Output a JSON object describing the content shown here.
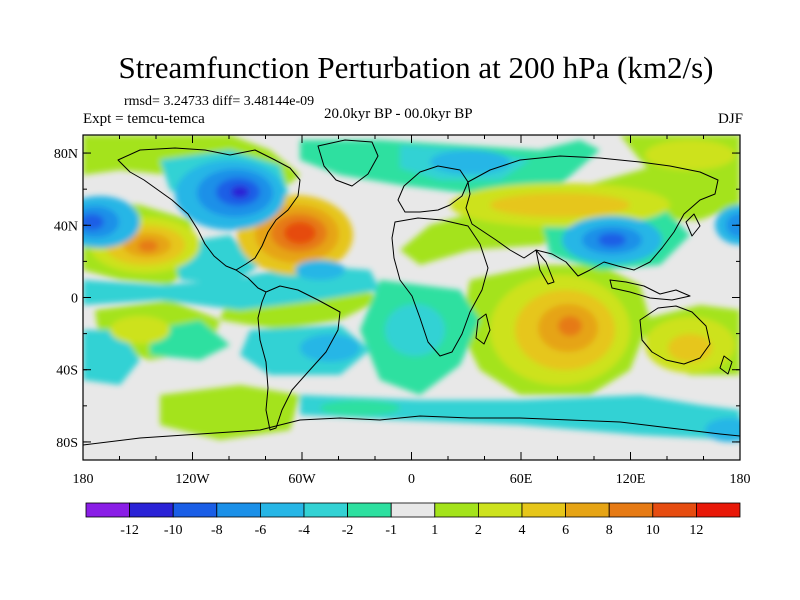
{
  "title": "Streamfunction Perturbation at 200 hPa (km2/s)",
  "stats": "rmsd= 3.24733 diff= 3.48144e-09",
  "experiment": "Expt = temcu-temca",
  "period": "20.0kyr BP - 00.0kyr BP",
  "season": "DJF",
  "axes": {
    "lon_ticks": [
      "180",
      "120W",
      "60W",
      "0",
      "60E",
      "120E",
      "180"
    ],
    "lat_ticks": [
      "80N",
      "40N",
      "0",
      "40S",
      "80S"
    ]
  },
  "colorbar": {
    "colors": [
      "#8a1ee6",
      "#2a22d6",
      "#1a5ee6",
      "#1b90e8",
      "#27b6e6",
      "#33d2d4",
      "#2de0a0",
      "#e8e8e8",
      "#a4e31b",
      "#cde21e",
      "#e6c61a",
      "#e6a415",
      "#e67a14",
      "#e64c10",
      "#e81808"
    ],
    "labels": [
      "-12",
      "-10",
      "-8",
      "-6",
      "-4",
      "-2",
      "-1",
      "1",
      "2",
      "4",
      "6",
      "8",
      "10",
      "12"
    ]
  },
  "chart_data": {
    "type": "heatmap",
    "variable": "200 hPa streamfunction perturbation",
    "units": "km2/s",
    "xlim": [
      -180,
      180
    ],
    "ylim": [
      -90,
      90
    ],
    "levels": [
      -12,
      -10,
      -8,
      -6,
      -4,
      -2,
      -1,
      1,
      2,
      4,
      6,
      8,
      10,
      12
    ],
    "features": [
      {
        "type": "low",
        "lon": -93,
        "lat": 57,
        "value": -10
      },
      {
        "type": "high",
        "lon": -60,
        "lat": 35,
        "value": 11
      },
      {
        "type": "high",
        "lon": -142,
        "lat": 26,
        "value": 7
      },
      {
        "type": "low",
        "lon": -172,
        "lat": 40,
        "value": -8
      },
      {
        "type": "low",
        "lon": 172,
        "lat": 40,
        "value": -6
      },
      {
        "type": "low",
        "lon": 108,
        "lat": 29,
        "value": -6
      },
      {
        "type": "high",
        "lon": 88,
        "lat": -22,
        "value": 6
      },
      {
        "type": "high",
        "lon": 60,
        "lat": 45,
        "value": 3
      }
    ]
  }
}
